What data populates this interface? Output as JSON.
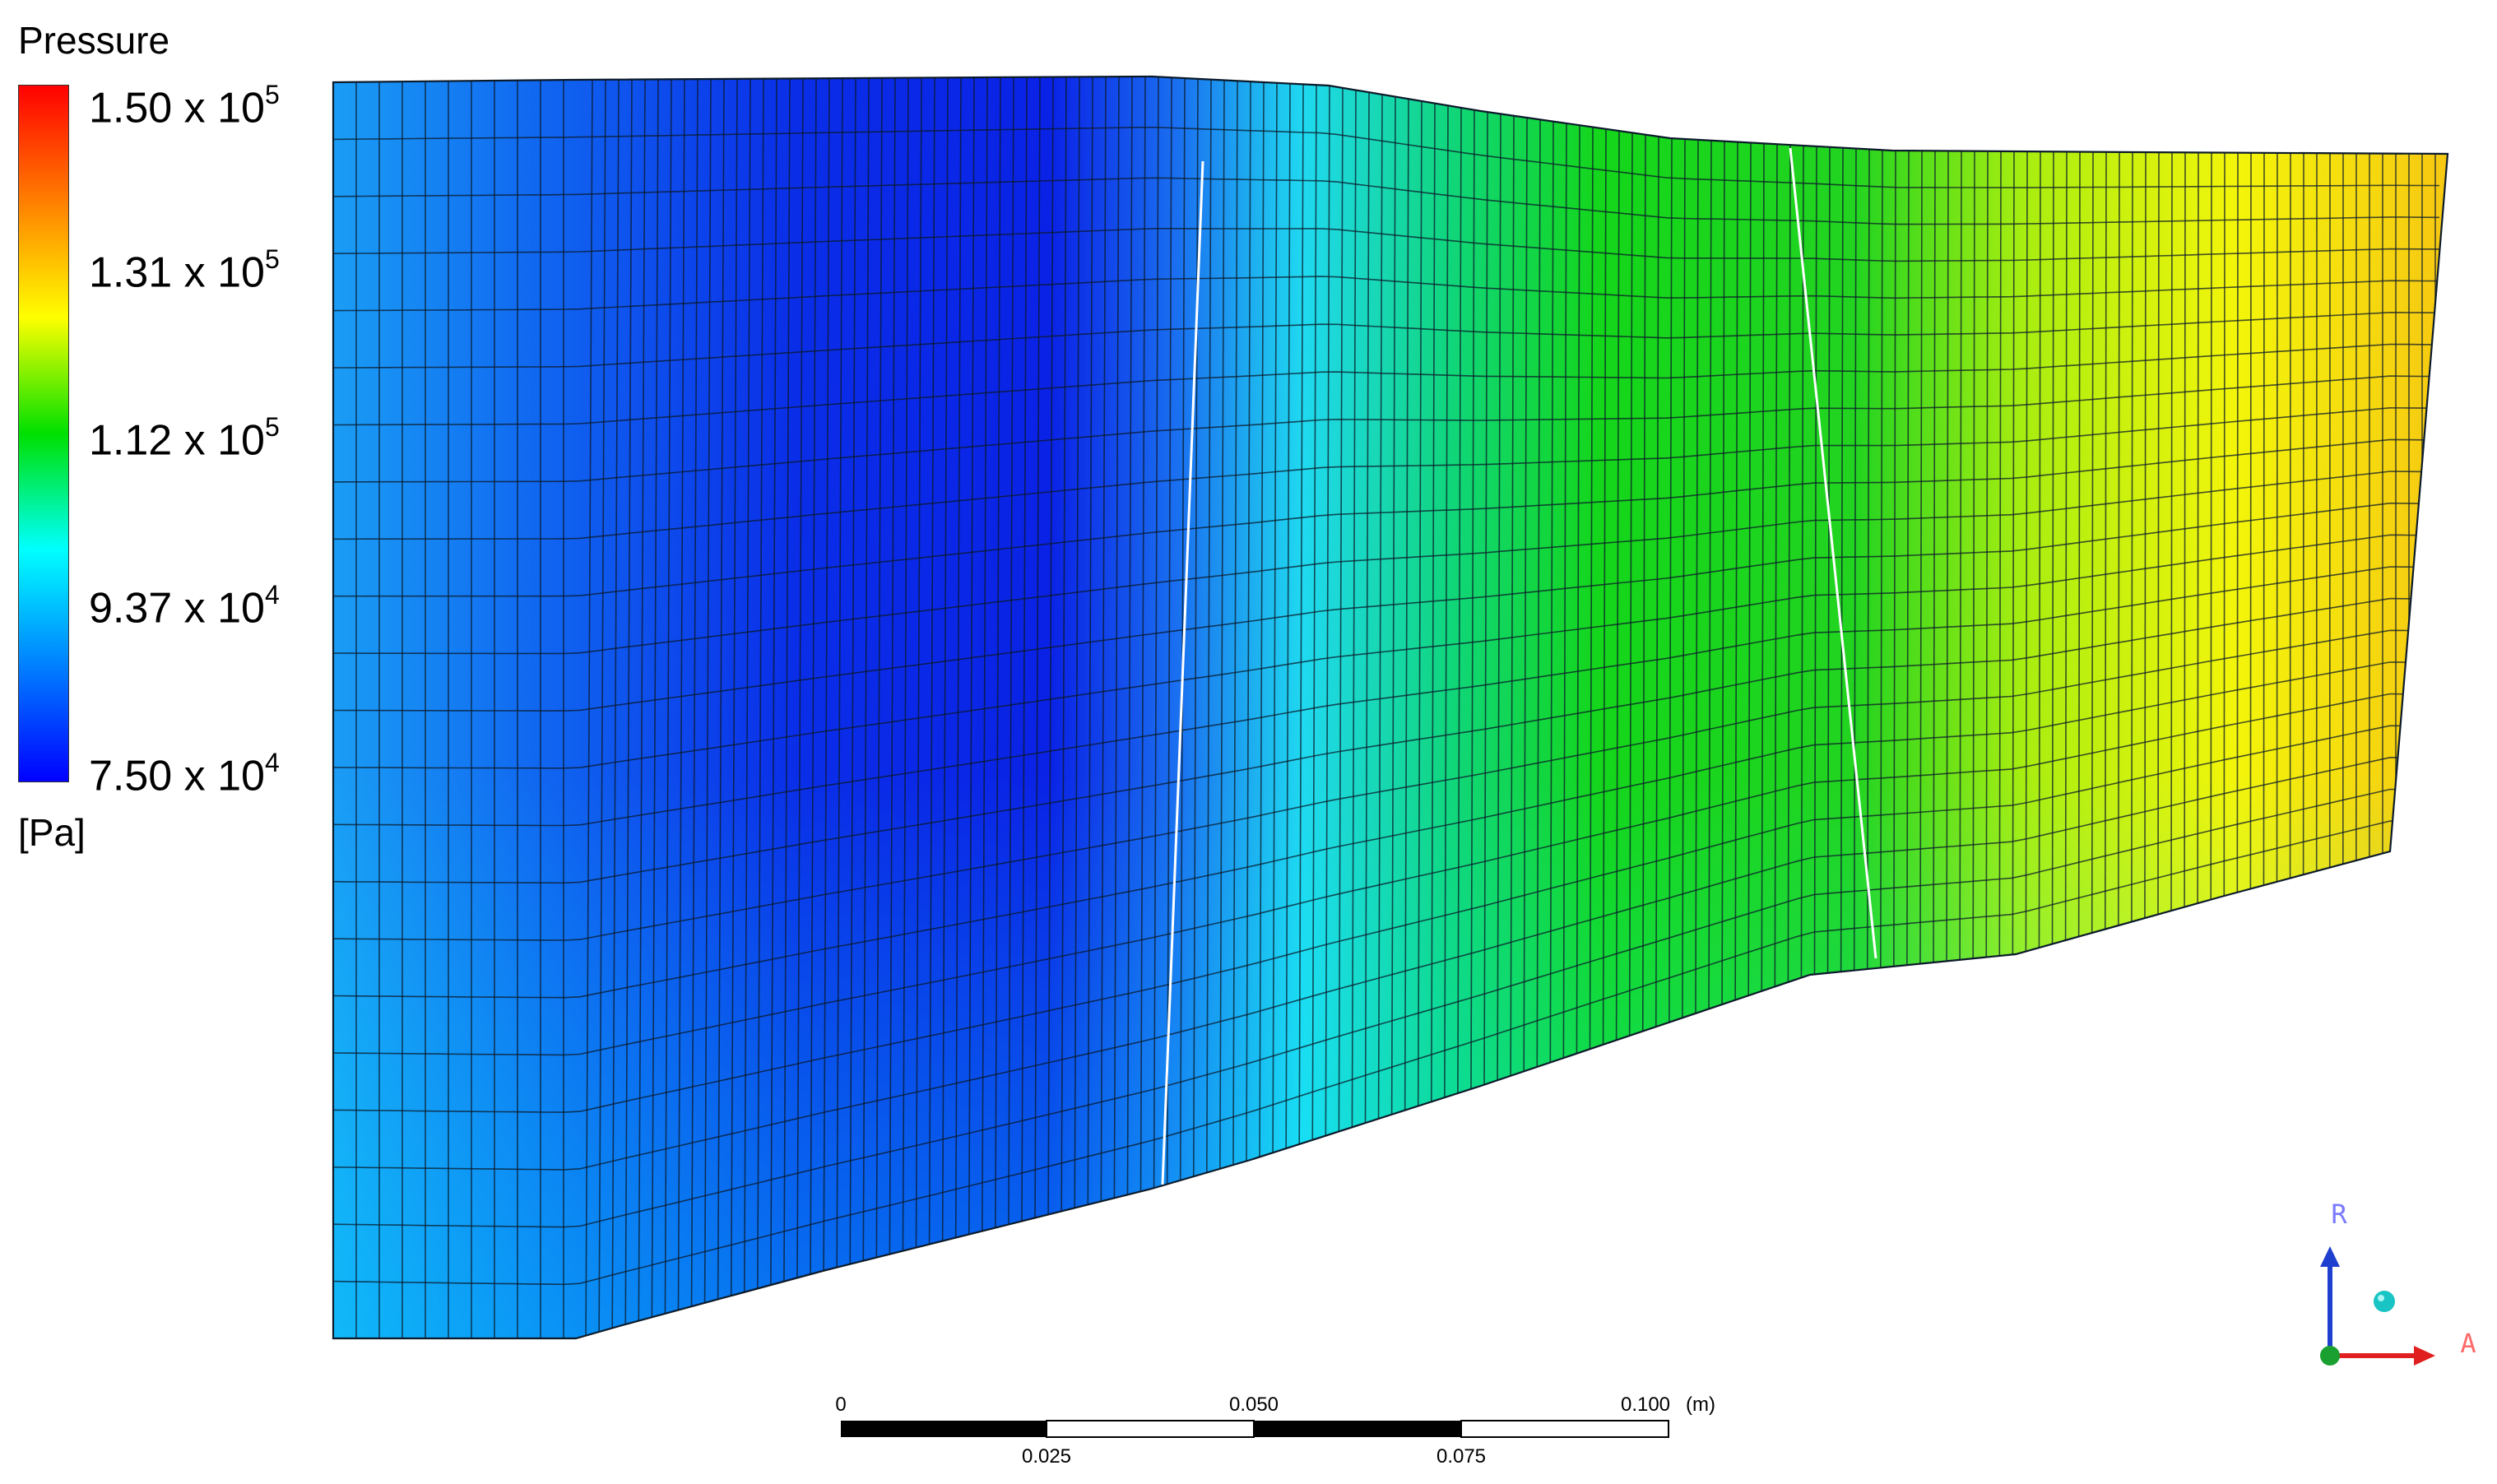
{
  "legend": {
    "title": "Pressure",
    "unit": "[Pa]",
    "ticks": [
      {
        "mantissa": "1.50 x 10",
        "exponent": "5"
      },
      {
        "mantissa": "1.31 x 10",
        "exponent": "5"
      },
      {
        "mantissa": "1.12 x 10",
        "exponent": "5"
      },
      {
        "mantissa": "9.37 x 10",
        "exponent": "4"
      },
      {
        "mantissa": "7.50 x 10",
        "exponent": "4"
      }
    ],
    "colormap": [
      "#ff0000",
      "#ff7f00",
      "#ffff00",
      "#00e000",
      "#00ffff",
      "#0080ff",
      "#0000ff"
    ]
  },
  "scale_bar": {
    "labels_top": [
      "0",
      "0.050",
      "0.100"
    ],
    "labels_bottom": [
      "0.025",
      "0.075"
    ],
    "unit": "(m)"
  },
  "triad": {
    "up_label": "R",
    "right_label": "A",
    "up_color": "#1f3fcf",
    "right_color": "#e02020",
    "origin_color": "#1aa030",
    "ball_color": "#19c4c4"
  }
}
